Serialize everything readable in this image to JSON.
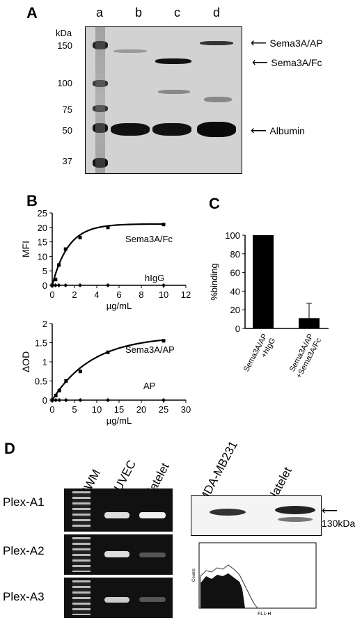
{
  "panel_a": {
    "letter": "A",
    "lanes": [
      "a",
      "b",
      "c",
      "d"
    ],
    "unit": "kDa",
    "markers": [
      "150",
      "100",
      "75",
      "50",
      "37"
    ],
    "arrows": [
      "Sema3A/AP",
      "Sema3A/Fc",
      "Albumin"
    ]
  },
  "panel_b": {
    "letter": "B",
    "top": {
      "ylabel": "MFI",
      "xlabel": "µg/mL",
      "series": [
        "Sema3A/Fc",
        "hIgG"
      ]
    },
    "bottom": {
      "ylabel": "ΔOD",
      "xlabel": "µg/mL",
      "series": [
        "Sema3A/AP",
        "AP"
      ]
    }
  },
  "panel_c": {
    "letter": "C",
    "ylabel": "%binding",
    "categories": [
      "Sema3A/AP\n+hIgG",
      "Sema3A/AP\n+Sema3A/Fc"
    ]
  },
  "panel_d": {
    "letter": "D",
    "lanes_left": [
      "MWM",
      "HUVEC",
      "platelet"
    ],
    "lanes_right": [
      "MDA-MB231",
      "platelet"
    ],
    "rows": [
      "Plex-A1",
      "Plex-A2",
      "Plex-A3"
    ],
    "arrow": "130kDa",
    "flow_xlabel": "FL1-H",
    "flow_ylabel": "Counts"
  },
  "chart_data": [
    {
      "type": "line",
      "panel": "B-top",
      "xlabel": "µg/mL",
      "ylabel": "MFI",
      "xlim": [
        0,
        12
      ],
      "ylim": [
        0,
        25
      ],
      "xticks": [
        0,
        2,
        4,
        6,
        8,
        10,
        12
      ],
      "yticks": [
        0,
        5,
        10,
        15,
        20,
        25
      ],
      "series": [
        {
          "name": "Sema3A/Fc",
          "x": [
            0,
            0.3,
            0.6,
            1.2,
            2.5,
            5,
            10
          ],
          "y": [
            0,
            2,
            7,
            12.5,
            16.5,
            20,
            21
          ]
        },
        {
          "name": "hIgG",
          "x": [
            0,
            0.3,
            0.6,
            1.2,
            2.5,
            5,
            10
          ],
          "y": [
            0,
            0,
            0,
            0,
            0,
            0,
            0
          ]
        }
      ]
    },
    {
      "type": "line",
      "panel": "B-bottom",
      "xlabel": "µg/mL",
      "ylabel": "ΔOD",
      "xlim": [
        0,
        30
      ],
      "ylim": [
        0,
        2
      ],
      "xticks": [
        0,
        5,
        10,
        15,
        20,
        25,
        30
      ],
      "yticks": [
        0,
        0.5,
        1,
        1.5,
        2
      ],
      "series": [
        {
          "name": "Sema3A/AP",
          "x": [
            0,
            0.8,
            1.6,
            3.1,
            6.3,
            12.5,
            25
          ],
          "y": [
            0,
            0.12,
            0.25,
            0.5,
            0.75,
            1.25,
            1.55
          ]
        },
        {
          "name": "AP",
          "x": [
            0,
            0.8,
            1.6,
            3.1,
            6.3,
            12.5,
            25
          ],
          "y": [
            0,
            0,
            0,
            0,
            0,
            0,
            0
          ]
        }
      ]
    },
    {
      "type": "bar",
      "panel": "C",
      "ylabel": "%binding",
      "ylim": [
        0,
        100
      ],
      "yticks": [
        0,
        20,
        40,
        60,
        80,
        100
      ],
      "categories": [
        "Sema3A/AP +hIgG",
        "Sema3A/AP +Sema3A/Fc"
      ],
      "values": [
        100,
        11
      ],
      "error": [
        0,
        16
      ]
    }
  ]
}
